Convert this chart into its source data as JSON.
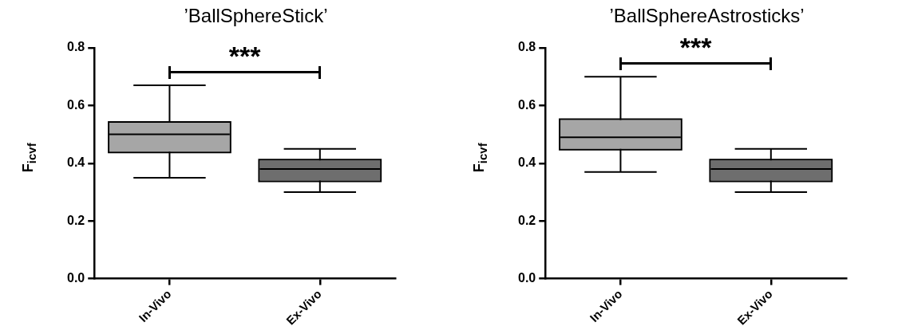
{
  "chart_data": [
    {
      "type": "box",
      "title": "’BallSphereStick’",
      "ylabel": "F$_{icvf}$",
      "categories": [
        "In-Vivo",
        "Ex-Vivo"
      ],
      "colors": [
        "#a6a6a6",
        "#6e6e6e"
      ],
      "boxes": [
        {
          "low": 0.35,
          "q1": 0.44,
          "median": 0.5,
          "q3": 0.54,
          "high": 0.67
        },
        {
          "low": 0.3,
          "q1": 0.34,
          "median": 0.38,
          "q3": 0.41,
          "high": 0.45
        }
      ],
      "ylim": [
        0,
        0.8
      ],
      "yticks": [
        {
          "value": 0,
          "label": "0.0"
        },
        0.2,
        0.4,
        0.6,
        0.8
      ],
      "grid": false,
      "legend": false,
      "annotations": [
        "***"
      ]
    },
    {
      "type": "box",
      "title": "’BallSphereAstrosticks’",
      "ylabel": "F$_{icvf}$",
      "categories": [
        "In-Vivo",
        "Ex-Vivo"
      ],
      "colors": [
        "#a6a6a6",
        "#6e6e6e"
      ],
      "boxes": [
        {
          "low": 0.37,
          "q1": 0.45,
          "median": 0.49,
          "q3": 0.55,
          "high": 0.7
        },
        {
          "low": 0.3,
          "q1": 0.34,
          "median": 0.38,
          "q3": 0.41,
          "high": 0.45
        }
      ],
      "ylim": [
        0,
        0.8
      ],
      "yticks": [
        {
          "value": 0,
          "label": "0.0"
        },
        0.2,
        0.4,
        0.6,
        0.8
      ],
      "grid": false,
      "legend": false,
      "annotations": [
        "***"
      ]
    }
  ]
}
